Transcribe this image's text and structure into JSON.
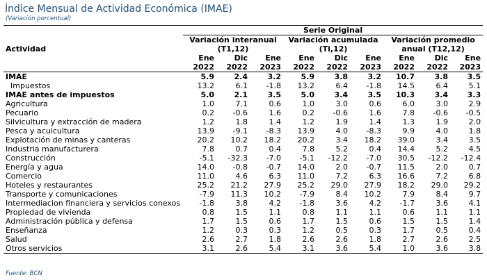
{
  "header": {
    "title": "Índice Mensual de Actividad Económica (IMAE)",
    "subtitle": "(Variación porcentual)"
  },
  "table": {
    "series_label": "Serie Original",
    "row_header": "Actividad",
    "groups": [
      {
        "line1": "Variación interanual",
        "line2": "(T1,12)"
      },
      {
        "line1": "Variación acumulada",
        "line2": "(Ti,12)"
      },
      {
        "line1": "Variación promedio",
        "line2": "anual (T12,12)"
      }
    ],
    "periods": [
      {
        "month": "Ene",
        "year": "2022"
      },
      {
        "month": "Dic",
        "year": "2022"
      },
      {
        "month": "Ene",
        "year": "2023"
      }
    ],
    "rows": [
      {
        "label": "IMAE",
        "style": "bold",
        "values": [
          "5.9",
          "2.4",
          "3.2",
          "5.9",
          "3.8",
          "3.2",
          "10.7",
          "3.8",
          "3.5"
        ]
      },
      {
        "label": "Impuestos",
        "style": "indent",
        "values": [
          "13.2",
          "6.1",
          "-1.8",
          "13.2",
          "6.4",
          "-1.8",
          "14.5",
          "6.4",
          "5.1"
        ]
      },
      {
        "label": "IMAE antes de impuestos",
        "style": "bold",
        "values": [
          "5.0",
          "2.1",
          "3.5",
          "5.0",
          "3.4",
          "3.5",
          "10.3",
          "3.4",
          "3.3"
        ]
      },
      {
        "label": "Agricultura",
        "style": "",
        "values": [
          "1.0",
          "7.1",
          "0.6",
          "1.0",
          "3.0",
          "0.6",
          "6.0",
          "3.0",
          "2.9"
        ]
      },
      {
        "label": "Pecuario",
        "style": "",
        "values": [
          "0.2",
          "-0.6",
          "1.6",
          "0.2",
          "-0.6",
          "1.6",
          "7.8",
          "-0.6",
          "-0.5"
        ]
      },
      {
        "label": "Silvicultura y extracción de madera",
        "style": "",
        "values": [
          "1.2",
          "1.8",
          "1.4",
          "1.2",
          "1.9",
          "1.4",
          "1.3",
          "1.9",
          "2.0"
        ]
      },
      {
        "label": "Pesca y acuicultura",
        "style": "",
        "values": [
          "13.9",
          "-9.1",
          "-8.3",
          "13.9",
          "4.0",
          "-8.3",
          "9.9",
          "4.0",
          "1.8"
        ]
      },
      {
        "label": "Explotación de minas y canteras",
        "style": "",
        "values": [
          "20.2",
          "10.2",
          "18.2",
          "20.2",
          "3.4",
          "18.2",
          "39.0",
          "3.4",
          "3.5"
        ]
      },
      {
        "label": "Industria manufacturera",
        "style": "",
        "values": [
          "7.8",
          "0.7",
          "0.4",
          "7.8",
          "5.2",
          "0.4",
          "14.4",
          "5.2",
          "4.5"
        ]
      },
      {
        "label": "Construcción",
        "style": "",
        "values": [
          "-5.1",
          "-32.3",
          "-7.0",
          "-5.1",
          "-12.2",
          "-7.0",
          "30.5",
          "-12.2",
          "-12.4"
        ]
      },
      {
        "label": "Energía y agua",
        "style": "",
        "values": [
          "14.0",
          "-0.8",
          "-0.7",
          "14.0",
          "2.0",
          "-0.7",
          "11.5",
          "2.0",
          "0.7"
        ]
      },
      {
        "label": "Comercio",
        "style": "",
        "values": [
          "11.0",
          "4.6",
          "6.3",
          "11.0",
          "7.2",
          "6.3",
          "16.6",
          "7.2",
          "6.8"
        ]
      },
      {
        "label": "Hoteles y restaurantes",
        "style": "",
        "values": [
          "25.2",
          "21.2",
          "27.9",
          "25.2",
          "29.0",
          "27.9",
          "18.2",
          "29.0",
          "29.2"
        ]
      },
      {
        "label": "Transporte y comunicaciones",
        "style": "",
        "values": [
          "-7.9",
          "11.3",
          "10.2",
          "-7.9",
          "8.4",
          "10.2",
          "7.9",
          "8.4",
          "9.7"
        ]
      },
      {
        "label": "Intermediacion financiera y servicios conexos",
        "style": "",
        "values": [
          "-1.8",
          "3.8",
          "4.2",
          "-1.8",
          "3.6",
          "4.2",
          "-1.7",
          "3.6",
          "4.1"
        ]
      },
      {
        "label": "Propiedad de vivienda",
        "style": "",
        "values": [
          "0.8",
          "1.5",
          "1.1",
          "0.8",
          "1.1",
          "1.1",
          "0.6",
          "1.1",
          "1.1"
        ]
      },
      {
        "label": "Administración pública y defensa",
        "style": "",
        "values": [
          "1.7",
          "1.5",
          "0.6",
          "1.7",
          "1.5",
          "0.6",
          "1.5",
          "1.5",
          "1.4"
        ]
      },
      {
        "label": "Enseñanza",
        "style": "",
        "values": [
          "1.2",
          "0.3",
          "0.3",
          "1.2",
          "0.5",
          "0.3",
          "1.7",
          "0.5",
          "0.4"
        ]
      },
      {
        "label": "Salud",
        "style": "",
        "values": [
          "2.6",
          "2.7",
          "1.8",
          "2.6",
          "2.6",
          "1.8",
          "2.7",
          "2.6",
          "2.5"
        ]
      },
      {
        "label": "Otros servicios",
        "style": "",
        "values": [
          "3.1",
          "2.6",
          "5.4",
          "3.1",
          "3.6",
          "5.4",
          "1.0",
          "3.6",
          "3.8"
        ]
      }
    ]
  },
  "footer": {
    "source": "Fuente: BCN"
  }
}
